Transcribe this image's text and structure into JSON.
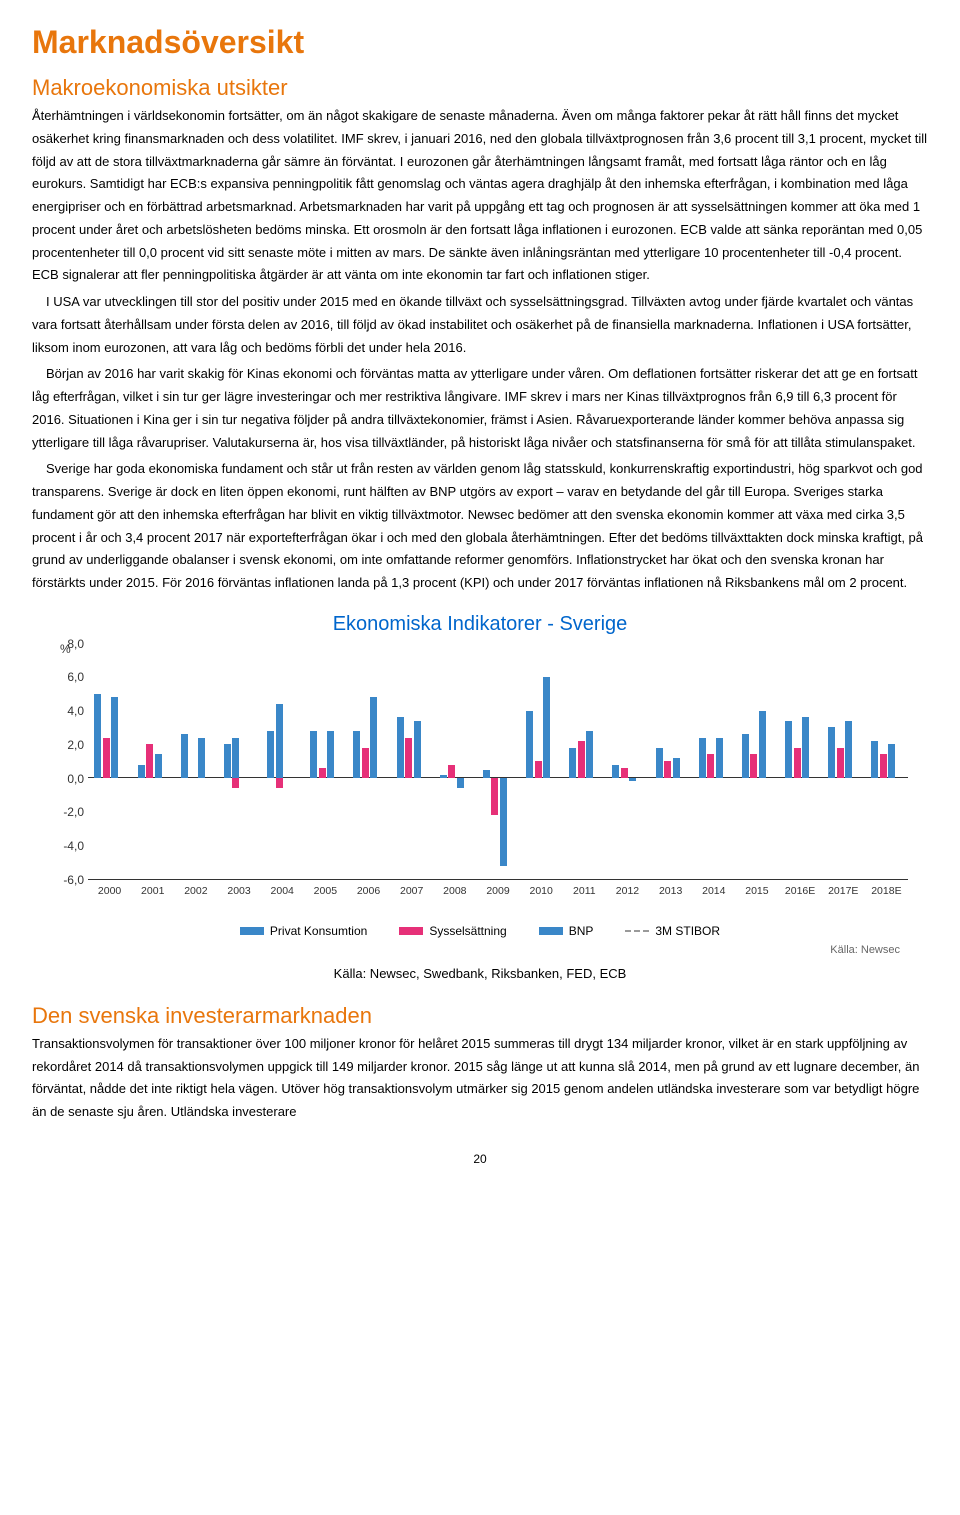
{
  "title": "Marknadsöversikt",
  "section1": {
    "heading": "Makroekonomiska utsikter",
    "p1": "Återhämtningen i världsekonomin fortsätter, om än något skakigare de senaste månaderna. Även om många faktorer pekar åt rätt håll finns det mycket osäkerhet kring finansmarknaden och dess volatilitet. IMF skrev, i januari 2016, ned den globala tillväxtprognosen från 3,6 procent till 3,1 procent, mycket till följd av att de stora tillväxtmarknaderna går sämre än förväntat. I eurozonen går återhämtningen långsamt framåt, med fortsatt låga räntor och en låg eurokurs. Samtidigt har ECB:s expansiva penningpolitik fått genomslag och väntas agera draghjälp åt den inhemska efterfrågan, i kombination med låga energipriser och en förbättrad arbetsmarknad. Arbetsmarknaden har varit på uppgång ett tag och prognosen är att sysselsättningen kommer att öka med 1 procent under året och arbetslösheten bedöms minska. Ett orosmoln är den fortsatt låga inflationen i eurozonen. ECB valde att sänka reporäntan med 0,05 procentenheter till 0,0 procent vid sitt senaste möte i mitten av mars. De sänkte även inlåningsräntan med ytterligare 10 procentenheter till -0,4 procent. ECB signalerar att fler penningpolitiska åtgärder är att vänta om inte ekonomin tar fart och inflationen stiger.",
    "p2": "I USA var utvecklingen till stor del positiv under 2015 med en ökande tillväxt och sysselsättningsgrad. Tillväxten avtog under fjärde kvartalet och väntas vara fortsatt återhållsam under första delen av 2016, till följd av ökad instabilitet och osäkerhet på de finansiella marknaderna. Inflationen i USA fortsätter, liksom inom eurozonen, att vara låg och bedöms förbli det under hela 2016.",
    "p3": "Början av 2016 har varit skakig för Kinas ekonomi och förväntas matta av ytterligare under våren. Om deflationen fortsätter riskerar det att ge en fortsatt låg efterfrågan, vilket i sin tur ger lägre investeringar och mer restriktiva långivare. IMF skrev i mars ner Kinas tillväxtprognos från 6,9 till 6,3 procent för 2016. Situationen i Kina ger i sin tur negativa följder på andra tillväxtekonomier, främst i Asien. Råvaruexporterande länder kommer behöva anpassa sig ytterligare till låga råvarupriser. Valutakurserna är, hos visa tillväxtländer, på historiskt låga nivåer och statsfinanserna för små för att tillåta stimulanspaket.",
    "p4": "Sverige har goda ekonomiska fundament och står ut från resten av världen genom låg statsskuld, konkurrenskraftig exportindustri, hög sparkvot och god transparens. Sverige är dock en liten öppen ekonomi, runt hälften av BNP utgörs av export – varav en betydande del går till Europa. Sveriges starka fundament gör att den inhemska efterfrågan har blivit en viktig tillväxtmotor. Newsec bedömer att den svenska ekonomin kommer att växa med cirka 3,5 procent i år och 3,4 procent 2017 när exportefterfrågan ökar i och med den globala återhämtningen. Efter det bedöms tillväxttakten dock minska kraftigt, på grund av underliggande obalanser i svensk ekonomi, om inte omfattande reformer genomförs. Inflationstrycket har ökat och den svenska kronan har förstärkts under 2015. För 2016 förväntas inflationen landa på 1,3 procent (KPI) och under 2017 förväntas inflationen nå Riksbankens mål om 2 procent."
  },
  "chart": {
    "title": "Ekonomiska Indikatorer - Sverige",
    "y_label": "%",
    "y_ticks": [
      "8,0",
      "6,0",
      "4,0",
      "2,0",
      "0,0",
      "-2,0",
      "-4,0",
      "-6,0"
    ],
    "y_min": -6.0,
    "y_max": 8.0,
    "categories": [
      "2000",
      "2001",
      "2002",
      "2003",
      "2004",
      "2005",
      "2006",
      "2007",
      "2008",
      "2009",
      "2010",
      "2011",
      "2012",
      "2013",
      "2014",
      "2015",
      "2016E",
      "2017E",
      "2018E"
    ],
    "series": [
      {
        "name": "Privat Konsumtion",
        "color": "#3a87c8",
        "values": [
          5.0,
          0.8,
          2.6,
          2.0,
          2.8,
          2.8,
          2.8,
          3.6,
          0.2,
          0.5,
          4.0,
          1.8,
          0.8,
          1.8,
          2.4,
          2.6,
          3.4,
          3.0,
          2.2
        ]
      },
      {
        "name": "Sysselsättning",
        "color": "#e63078",
        "values": [
          2.4,
          2.0,
          0.0,
          -0.6,
          -0.6,
          0.6,
          1.8,
          2.4,
          0.8,
          -2.2,
          1.0,
          2.2,
          0.6,
          1.0,
          1.4,
          1.4,
          1.8,
          1.8,
          1.4
        ]
      },
      {
        "name": "BNP",
        "color": "#3a87c8",
        "values": [
          4.8,
          1.4,
          2.4,
          2.4,
          4.4,
          2.8,
          4.8,
          3.4,
          -0.6,
          -5.2,
          6.0,
          2.8,
          -0.2,
          1.2,
          2.4,
          4.0,
          3.6,
          3.4,
          2.0
        ]
      }
    ],
    "dash_series": {
      "name": "3M STIBOR",
      "color": "#9a9a9a"
    },
    "source": "Källa: Newsec",
    "legend": [
      "Privat Konsumtion",
      "Sysselsättning",
      "BNP",
      "3M STIBOR"
    ]
  },
  "caption": "Källa: Newsec, Swedbank, Riksbanken, FED, ECB",
  "section2": {
    "heading": "Den svenska investerarmarknaden",
    "p1": "Transaktionsvolymen för transaktioner över 100 miljoner kronor för helåret 2015 summeras till drygt 134 miljarder kronor, vilket är en stark uppföljning av rekordåret 2014 då transaktionsvolymen uppgick till 149 miljarder kronor. 2015 såg länge ut att kunna slå 2014, men på grund av ett lugnare december, än förväntat, nådde det inte riktigt hela vägen. Utöver hög transaktionsvolym utmärker sig 2015 genom andelen utländska investerare som var betydligt högre än de senaste sju åren. Utländska investerare"
  },
  "page": "20"
}
